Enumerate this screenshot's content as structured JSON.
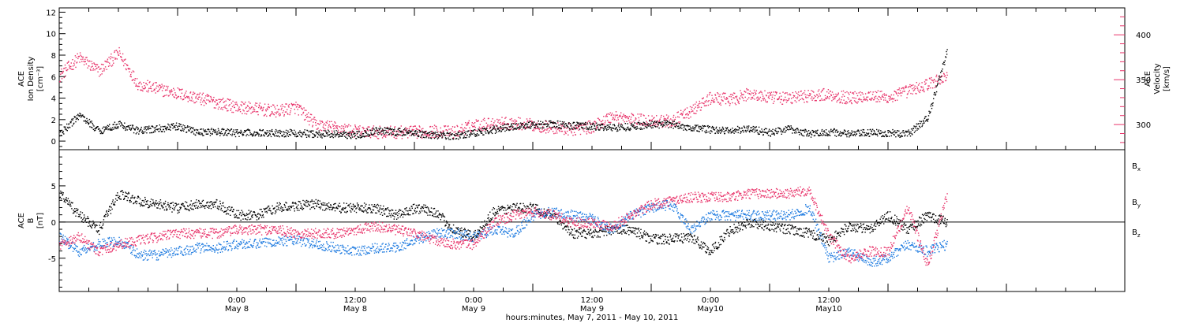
{
  "chart_data": [
    {
      "type": "scatter",
      "panel": "top",
      "left_axis": {
        "label_lines": [
          "ACE",
          "Ion Density",
          "[cm⁻³]"
        ],
        "ylim": [
          -0.8,
          12.4
        ],
        "ticks": [
          0,
          2,
          4,
          6,
          8,
          10,
          12
        ]
      },
      "right_axis": {
        "label_lines": [
          "ACE",
          "Velocity",
          "[km/s]"
        ],
        "ylim": [
          272,
          430
        ],
        "ticks": [
          300,
          350,
          400
        ]
      },
      "series": [
        {
          "name": "density",
          "axis": "left",
          "color": "#000000",
          "x": [
            0,
            2,
            4,
            6,
            8,
            10,
            12,
            14,
            16,
            18,
            20,
            22,
            24,
            26,
            28,
            30,
            32,
            34,
            36,
            38,
            40,
            42,
            44,
            46,
            48,
            50,
            52,
            54,
            56,
            58,
            60,
            62,
            64,
            66,
            68,
            70,
            72,
            74,
            76,
            78,
            80,
            82,
            84,
            86,
            88,
            90
          ],
          "y": [
            0.6,
            2.5,
            1.0,
            1.6,
            1.0,
            1.2,
            1.4,
            0.9,
            0.9,
            0.8,
            0.8,
            0.8,
            0.8,
            0.7,
            0.7,
            0.6,
            1.0,
            0.9,
            0.8,
            0.6,
            0.5,
            0.8,
            1.1,
            1.4,
            1.6,
            1.6,
            1.5,
            1.4,
            1.3,
            1.4,
            1.6,
            1.6,
            1.3,
            1.1,
            1.0,
            1.2,
            0.8,
            1.2,
            0.7,
            0.9,
            0.7,
            0.8,
            0.8,
            0.7,
            2.2,
            8.5
          ]
        },
        {
          "name": "velocity",
          "axis": "right",
          "color": "#e8336a",
          "x": [
            0,
            2,
            4,
            6,
            8,
            10,
            12,
            14,
            16,
            18,
            20,
            22,
            24,
            26,
            28,
            30,
            32,
            34,
            36,
            38,
            40,
            42,
            44,
            46,
            48,
            50,
            52,
            54,
            56,
            58,
            60,
            62,
            64,
            66,
            68,
            70,
            72,
            74,
            76,
            78,
            80,
            82,
            84,
            86,
            88,
            90
          ],
          "y": [
            355,
            375,
            360,
            380,
            345,
            340,
            335,
            330,
            325,
            320,
            318,
            315,
            320,
            300,
            297,
            293,
            292,
            292,
            292,
            293,
            292,
            300,
            302,
            302,
            300,
            297,
            295,
            298,
            310,
            306,
            305,
            304,
            315,
            330,
            328,
            335,
            330,
            330,
            333,
            334,
            330,
            333,
            330,
            338,
            345,
            355
          ]
        }
      ]
    },
    {
      "type": "scatter",
      "panel": "bottom",
      "left_axis": {
        "label_lines": [
          "ACE",
          "B",
          "[nT]"
        ],
        "ylim": [
          -9.6,
          10.0
        ],
        "ticks": [
          -5,
          0,
          5
        ]
      },
      "x_axis": {
        "xlim": [
          0,
          108
        ],
        "tick_labels": [
          {
            "x": 18,
            "line1": "0:00",
            "line2": "May 8"
          },
          {
            "x": 30,
            "line1": "12:00",
            "line2": "May 8"
          },
          {
            "x": 42,
            "line1": "0:00",
            "line2": "May 9"
          },
          {
            "x": 54,
            "line1": "12:00",
            "line2": "May 9"
          },
          {
            "x": 66,
            "line1": "0:00",
            "line2": "May10"
          },
          {
            "x": 78,
            "line1": "12:00",
            "line2": "May10"
          }
        ],
        "label": "hours:minutes,  May  7, 2011 - May 10, 2011"
      },
      "legend": [
        {
          "name": "B",
          "sub": "x",
          "color": "#000000"
        },
        {
          "name": "B",
          "sub": "y",
          "color": "#1e7be0"
        },
        {
          "name": "B",
          "sub": "z",
          "color": "#e8336a"
        }
      ],
      "series": [
        {
          "name": "Bx",
          "color": "#000000",
          "x": [
            0,
            2,
            4,
            6,
            8,
            10,
            12,
            14,
            16,
            18,
            20,
            22,
            24,
            26,
            28,
            30,
            32,
            34,
            36,
            38,
            40,
            42,
            44,
            46,
            48,
            50,
            52,
            54,
            56,
            58,
            60,
            62,
            64,
            66,
            68,
            70,
            72,
            74,
            76,
            78,
            80,
            82,
            84,
            86,
            88,
            90
          ],
          "y": [
            4,
            1,
            -1,
            4,
            3,
            2.5,
            2,
            2.5,
            2.5,
            1,
            1,
            2,
            2.3,
            2.5,
            2,
            2,
            2,
            1,
            2,
            1.5,
            -1,
            -2,
            1.5,
            2,
            2,
            1,
            -1.5,
            -1.5,
            -1,
            -1,
            -2.3,
            -2.3,
            -2,
            -4,
            -1,
            0,
            -0.5,
            -1,
            -1.5,
            -2.5,
            -0.5,
            -1,
            1,
            -1,
            1,
            0
          ]
        },
        {
          "name": "By",
          "color": "#1e7be0",
          "x": [
            0,
            2,
            4,
            6,
            8,
            10,
            12,
            14,
            16,
            18,
            20,
            22,
            24,
            26,
            28,
            30,
            32,
            34,
            36,
            38,
            40,
            42,
            44,
            46,
            48,
            50,
            52,
            54,
            56,
            58,
            60,
            62,
            64,
            66,
            68,
            70,
            72,
            74,
            76,
            78,
            80,
            82,
            84,
            86,
            88,
            90
          ],
          "y": [
            -2,
            -4,
            -3,
            -2.5,
            -4.5,
            -4.5,
            -4,
            -3.5,
            -3.5,
            -3,
            -3,
            -2.5,
            -2.5,
            -3,
            -3.5,
            -4,
            -3.5,
            -3.5,
            -2.5,
            -1.5,
            -1.5,
            -2,
            -1,
            -1.5,
            1,
            1.5,
            1,
            0.5,
            -1,
            1,
            2,
            2.5,
            -1,
            1,
            1,
            1,
            1,
            1,
            2,
            -5,
            -4,
            -5.5,
            -5,
            -3,
            -4,
            -3
          ]
        },
        {
          "name": "Bz",
          "color": "#e8336a",
          "x": [
            0,
            2,
            4,
            6,
            8,
            10,
            12,
            14,
            16,
            18,
            20,
            22,
            24,
            26,
            28,
            30,
            32,
            34,
            36,
            38,
            40,
            42,
            44,
            46,
            48,
            50,
            52,
            54,
            56,
            58,
            60,
            62,
            64,
            66,
            68,
            70,
            72,
            74,
            76,
            78,
            80,
            82,
            84,
            86,
            88,
            90
          ],
          "y": [
            -3,
            -2,
            -4,
            -3,
            -2.5,
            -2,
            -1.5,
            -1.5,
            -1.5,
            -1,
            -1,
            -1,
            -1.5,
            -1.5,
            -1.5,
            -1,
            -0.5,
            -1,
            -1.5,
            -2.5,
            -3,
            -3,
            0,
            1,
            1.5,
            1,
            0,
            0,
            -0.5,
            1,
            2.5,
            3,
            3.5,
            3.5,
            3.5,
            4,
            4,
            4,
            4.5,
            -2,
            -5,
            -4,
            -4,
            2,
            -6,
            4
          ]
        }
      ]
    }
  ]
}
